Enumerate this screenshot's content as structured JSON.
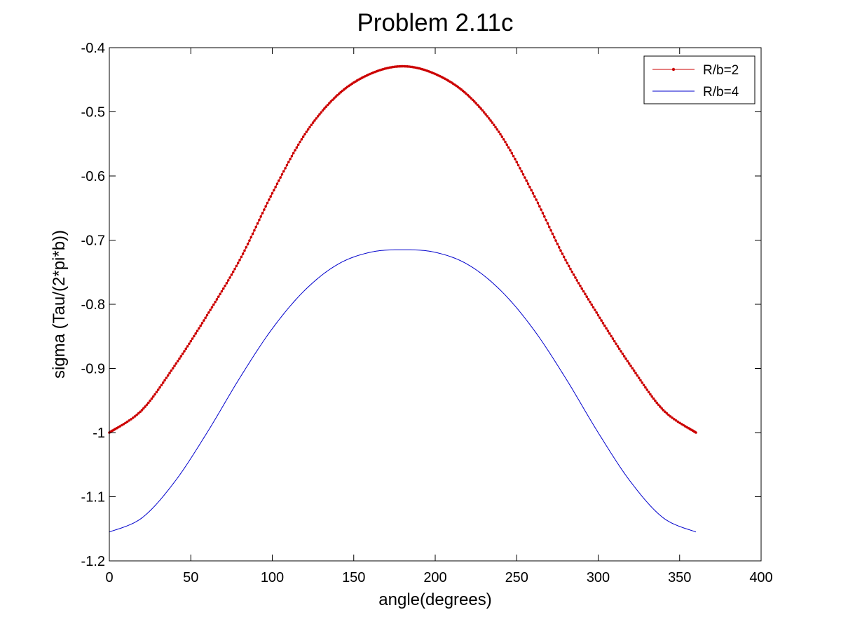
{
  "chart_data": {
    "type": "line",
    "title": "Problem 2.11c",
    "xlabel": "angle(degrees)",
    "ylabel": "sigma (Tau/(2*pi*b))",
    "xlim": [
      0,
      400
    ],
    "ylim": [
      -1.2,
      -0.4
    ],
    "xticks": [
      0,
      50,
      100,
      150,
      200,
      250,
      300,
      350,
      400
    ],
    "xtick_labels": [
      "0",
      "50",
      "100",
      "150",
      "200",
      "250",
      "300",
      "350",
      "400"
    ],
    "yticks": [
      -0.4,
      -0.5,
      -0.6,
      -0.7,
      -0.8,
      -0.9,
      -1,
      -1.1,
      -1.2
    ],
    "ytick_labels": [
      "-0.4",
      "-0.5",
      "-0.6",
      "-0.7",
      "-0.8",
      "-0.9",
      "-1",
      "-1.1",
      "-1.2"
    ],
    "grid": false,
    "legend_position": "top-right",
    "series": [
      {
        "name": "R/b=2",
        "color": "#cc0000",
        "marker": "point",
        "x": [
          0,
          20,
          40,
          60,
          80,
          100,
          120,
          140,
          160,
          180,
          200,
          220,
          240,
          260,
          280,
          300,
          320,
          340,
          360
        ],
        "values": [
          -1.0,
          -0.965,
          -0.896,
          -0.817,
          -0.731,
          -0.627,
          -0.535,
          -0.474,
          -0.441,
          -0.429,
          -0.441,
          -0.474,
          -0.535,
          -0.627,
          -0.731,
          -0.817,
          -0.896,
          -0.965,
          -1.0
        ]
      },
      {
        "name": "R/b=4",
        "color": "#0000cc",
        "marker": "none",
        "x": [
          0,
          20,
          40,
          60,
          80,
          100,
          120,
          140,
          160,
          180,
          200,
          220,
          240,
          260,
          280,
          300,
          320,
          340,
          360
        ],
        "values": [
          -1.155,
          -1.133,
          -1.077,
          -1.0,
          -0.915,
          -0.838,
          -0.778,
          -0.738,
          -0.719,
          -0.715,
          -0.719,
          -0.738,
          -0.778,
          -0.838,
          -0.915,
          -1.0,
          -1.077,
          -1.133,
          -1.155
        ]
      }
    ]
  }
}
